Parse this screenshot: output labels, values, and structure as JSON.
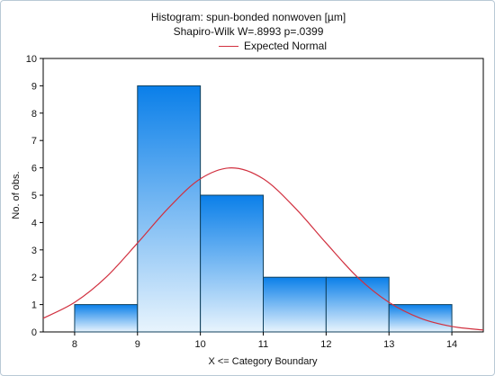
{
  "chart_data": {
    "type": "bar",
    "title": "Histogram: spun-bonded nonwoven [µm]",
    "subtitle": "Shapiro-Wilk W=.8993  p=.0399",
    "xlabel": "X <= Category Boundary",
    "ylabel": "No. of obs.",
    "xlim": [
      7.5,
      14.5
    ],
    "ylim": [
      0,
      10
    ],
    "xticks": [
      8,
      9,
      10,
      11,
      12,
      13,
      14
    ],
    "yticks": [
      0,
      1,
      2,
      3,
      4,
      5,
      6,
      7,
      8,
      9,
      10
    ],
    "bins": [
      {
        "from": 8,
        "to": 9,
        "count": 1
      },
      {
        "from": 9,
        "to": 10,
        "count": 9
      },
      {
        "from": 10,
        "to": 11,
        "count": 5
      },
      {
        "from": 11,
        "to": 12,
        "count": 2
      },
      {
        "from": 12,
        "to": 13,
        "count": 2
      },
      {
        "from": 13,
        "to": 14,
        "count": 1
      }
    ],
    "series": [
      {
        "name": "Expected Normal",
        "type": "line",
        "color": "#d1303f",
        "x": [
          7.5,
          8.0,
          8.5,
          9.0,
          9.5,
          10.0,
          10.5,
          11.0,
          11.5,
          12.0,
          12.5,
          13.0,
          13.5,
          14.0,
          14.5
        ],
        "y": [
          0.5,
          1.08,
          2.0,
          3.25,
          4.55,
          5.6,
          6.0,
          5.6,
          4.55,
          3.25,
          2.0,
          1.08,
          0.5,
          0.2,
          0.07
        ]
      }
    ],
    "legend_position": "top",
    "grid": false,
    "colors": {
      "bar_top": "#0a7fe9",
      "bar_bottom": "#e8f4fd",
      "bar_edge": "#0f3f5c",
      "curve": "#d1303f"
    }
  }
}
